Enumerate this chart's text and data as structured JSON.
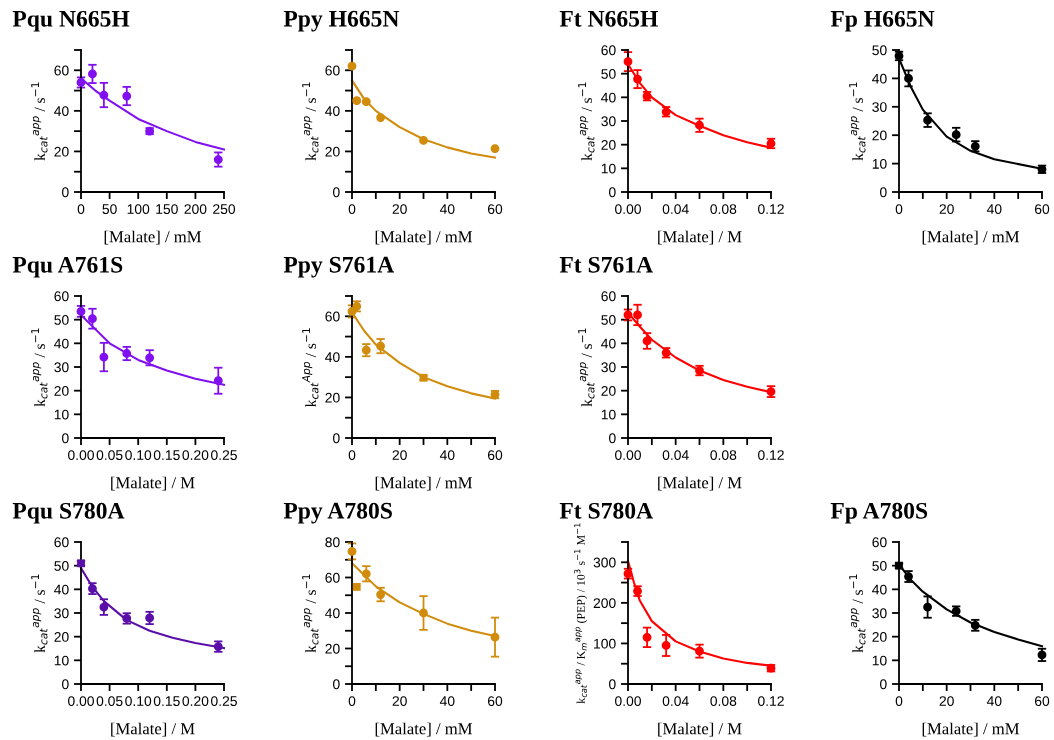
{
  "chart_data": [
    {
      "type": "scatter",
      "title": "Pqu N665H",
      "xlabel": "[Malate] / mM",
      "ylabel": "k$_{cat}$$^{app}$ / s$^{−1}$",
      "marker": "circle",
      "xlim": [
        0,
        250
      ],
      "xticks": [
        0,
        50,
        100,
        150,
        200,
        250
      ],
      "ylim": [
        0,
        70
      ],
      "yticks": [
        0,
        {
          "value": 10,
          "label": null
        },
        20,
        {
          "value": 30,
          "label": null
        },
        40,
        {
          "value": 50,
          "label": null
        },
        60,
        {
          "value": 70,
          "label": null
        }
      ],
      "series": [
        {
          "color": "#8010f0",
          "x": [
            0,
            20,
            40,
            80,
            120,
            240
          ],
          "values": [
            54,
            58.2,
            47.8,
            47.3,
            30,
            16
          ],
          "errors": [
            2.5,
            4.5,
            6,
            4.5,
            1.5,
            3.5
          ]
        },
        {
          "type": "line",
          "marker": "none",
          "color": "#8010f0",
          "x": [
            0,
            25,
            50,
            100,
            150,
            200,
            250
          ],
          "values": [
            56,
            50,
            45,
            36,
            30,
            24.7,
            21
          ]
        }
      ]
    },
    {
      "type": "scatter",
      "title": "Ppy H665N",
      "xlabel": "[Malate] / mM",
      "ylabel": "k$_{cat}$$^{app}$ / s$^{−1}$",
      "marker": "circle",
      "xlim": [
        0,
        60
      ],
      "xticks": [
        0,
        {
          "value": 10,
          "label": null
        },
        20,
        {
          "value": 30,
          "label": null
        },
        40,
        {
          "value": 50,
          "label": null
        },
        60
      ],
      "ylim": [
        0,
        70
      ],
      "yticks": [
        0,
        {
          "value": 10,
          "label": null
        },
        20,
        {
          "value": 30,
          "label": null
        },
        40,
        {
          "value": 50,
          "label": null
        },
        60,
        {
          "value": 70,
          "label": null
        }
      ],
      "series": [
        {
          "color": "#d18c0c",
          "x": [
            0,
            2,
            6,
            12,
            30,
            60
          ],
          "values": [
            62.1,
            45,
            44.5,
            36.7,
            25.5,
            21.4
          ]
        },
        {
          "type": "line",
          "marker": "none",
          "color": "#d18c0c",
          "x": [
            0,
            5,
            10,
            20,
            30,
            40,
            50,
            60
          ],
          "values": [
            55,
            46,
            40,
            32,
            26,
            22,
            19,
            17
          ]
        }
      ]
    },
    {
      "type": "scatter",
      "title": "Ft N665H",
      "xlabel": "[Malate] / M",
      "ylabel": "k$_{cat}$$^{app}$ / s$^{−1}$",
      "marker": "circle",
      "xlim": [
        0,
        0.12
      ],
      "xticks": [
        {
          "value": 0,
          "label": "0.00"
        },
        {
          "value": 0.02,
          "label": null
        },
        {
          "value": 0.04,
          "label": "0.04"
        },
        {
          "value": 0.06,
          "label": null
        },
        {
          "value": 0.08,
          "label": "0.08"
        },
        {
          "value": 0.1,
          "label": null
        },
        {
          "value": 0.12,
          "label": "0.12"
        }
      ],
      "ylim": [
        0,
        60
      ],
      "yticks": [
        0,
        10,
        20,
        30,
        40,
        50,
        60
      ],
      "series": [
        {
          "color": "#ff0000",
          "x": [
            0,
            0.008,
            0.016,
            0.032,
            0.06,
            0.12
          ],
          "values": [
            55.1,
            47.7,
            40.5,
            33.9,
            28.2,
            20.5
          ],
          "errors": [
            4,
            3.8,
            1.8,
            2,
            2.8,
            2
          ]
        },
        {
          "type": "line",
          "marker": "none",
          "color": "#ff0000",
          "x": [
            0,
            0.01,
            0.02,
            0.04,
            0.06,
            0.08,
            0.1,
            0.12
          ],
          "values": [
            54,
            46,
            40,
            32.5,
            28,
            24,
            21,
            18.7
          ]
        }
      ]
    },
    {
      "type": "scatter",
      "title": "Fp H665N",
      "xlabel": "[Malate] / mM",
      "ylabel": "k$_{cat}$$^{app}$ / s$^{−1}$",
      "marker": "circle",
      "xlim": [
        0,
        60
      ],
      "xticks": [
        0,
        {
          "value": 10,
          "label": null
        },
        20,
        {
          "value": 30,
          "label": null
        },
        40,
        {
          "value": 50,
          "label": null
        },
        60
      ],
      "ylim": [
        0,
        50
      ],
      "yticks": [
        0,
        10,
        20,
        30,
        40,
        50
      ],
      "series": [
        {
          "color": "#000000",
          "x": [
            0,
            4,
            12,
            24,
            32,
            60
          ],
          "values": [
            47.9,
            40,
            25.3,
            20.2,
            16.1,
            8
          ],
          "errors": [
            1.5,
            2.8,
            2.4,
            2.4,
            1.8,
            1.3
          ]
        },
        {
          "type": "line",
          "marker": "none",
          "color": "#000000",
          "x": [
            0,
            2,
            5,
            10,
            20,
            30,
            40,
            60
          ],
          "values": [
            47,
            43,
            37,
            29,
            19.5,
            14.5,
            11.5,
            8.2
          ]
        }
      ]
    },
    {
      "type": "scatter",
      "title": "Pqu A761S",
      "xlabel": "[Malate] / M",
      "ylabel": "k$_{cat}$$^{app}$ / s$^{−1}$",
      "marker": "circle",
      "xlim": [
        0,
        0.25
      ],
      "xticks": [
        {
          "value": 0,
          "label": "0.00"
        },
        {
          "value": 0.05,
          "label": "0.05"
        },
        {
          "value": 0.1,
          "label": "0.10"
        },
        {
          "value": 0.15,
          "label": "0.15"
        },
        {
          "value": 0.2,
          "label": "0.20"
        },
        {
          "value": 0.25,
          "label": "0.25"
        }
      ],
      "ylim": [
        0,
        60
      ],
      "yticks": [
        0,
        10,
        20,
        30,
        40,
        50,
        60
      ],
      "series": [
        {
          "color": "#8010f0",
          "x": [
            0,
            0.02,
            0.04,
            0.08,
            0.12,
            0.24
          ],
          "values": [
            53.5,
            50.4,
            34.2,
            35.7,
            33.9,
            24.2
          ],
          "errors": [
            2.3,
            4.2,
            6,
            2.8,
            3.2,
            5.5
          ]
        },
        {
          "type": "line",
          "marker": "none",
          "color": "#8010f0",
          "x": [
            0,
            0.025,
            0.05,
            0.1,
            0.15,
            0.2,
            0.25
          ],
          "values": [
            52,
            46,
            40,
            33,
            28.5,
            25,
            22.5
          ]
        }
      ]
    },
    {
      "type": "scatter",
      "title": "Ppy S761A",
      "xlabel": "[Malate] / mM",
      "ylabel": "k$_{cat}$$^{App}$ / s$^{−1}$",
      "marker": "circle",
      "xlim": [
        0,
        60
      ],
      "xticks": [
        0,
        {
          "value": 10,
          "label": null
        },
        20,
        {
          "value": 30,
          "label": null
        },
        40,
        {
          "value": 50,
          "label": null
        },
        60
      ],
      "ylim": [
        0,
        70
      ],
      "yticks": [
        0,
        {
          "value": 10,
          "label": null
        },
        20,
        {
          "value": 30,
          "label": null
        },
        40,
        {
          "value": 50,
          "label": null
        },
        60,
        {
          "value": 70,
          "label": null
        }
      ],
      "series": [
        {
          "color": "#d18c0c",
          "x": [
            0,
            2,
            6,
            12,
            60
          ],
          "values": [
            62.4,
            64.9,
            43.3,
            45.3,
            21.4
          ],
          "errors": [
            3,
            2.5,
            3,
            3.5,
            1.8
          ]
        },
        {
          "color": "#d18c0c",
          "marker": "square",
          "x": [
            30
          ],
          "values": [
            29.7
          ],
          "errors": [
            1
          ]
        },
        {
          "type": "line",
          "marker": "none",
          "color": "#d18c0c",
          "x": [
            0,
            5,
            10,
            20,
            30,
            40,
            50,
            60
          ],
          "values": [
            62,
            53,
            46,
            37,
            30,
            25.5,
            22,
            19.5
          ]
        }
      ]
    },
    {
      "type": "scatter",
      "title": "Ft S761A",
      "xlabel": "[Malate] / M",
      "ylabel": "k$_{cat}$$^{app}$ / s$^{−1}$",
      "marker": "circle",
      "xlim": [
        0,
        0.12
      ],
      "xticks": [
        {
          "value": 0,
          "label": "0.00"
        },
        {
          "value": 0.02,
          "label": null
        },
        {
          "value": 0.04,
          "label": "0.04"
        },
        {
          "value": 0.06,
          "label": null
        },
        {
          "value": 0.08,
          "label": "0.08"
        },
        {
          "value": 0.1,
          "label": null
        },
        {
          "value": 0.12,
          "label": "0.12"
        }
      ],
      "ylim": [
        0,
        60
      ],
      "yticks": [
        0,
        10,
        20,
        30,
        40,
        50,
        60
      ],
      "series": [
        {
          "color": "#ff0000",
          "x": [
            0,
            0.008,
            0.016,
            0.032,
            0.06,
            0.12
          ],
          "values": [
            52,
            52,
            41,
            36,
            28.5,
            19.6
          ],
          "errors": [
            2.3,
            4.3,
            3.3,
            2,
            2,
            2.3
          ]
        },
        {
          "type": "line",
          "marker": "none",
          "color": "#ff0000",
          "x": [
            0,
            0.01,
            0.02,
            0.04,
            0.06,
            0.08,
            0.1,
            0.12
          ],
          "values": [
            53,
            47,
            41.5,
            34,
            28.5,
            24.5,
            21.7,
            19.3
          ]
        }
      ]
    },
    {
      "type": "scatter",
      "title": "Pqu S780A",
      "xlabel": "[Malate] / M",
      "ylabel": "k$_{cat}$$^{app}$ / s$^{−1}$",
      "marker": "circle",
      "xlim": [
        0,
        0.25
      ],
      "xticks": [
        {
          "value": 0,
          "label": "0.00"
        },
        {
          "value": 0.05,
          "label": "0.05"
        },
        {
          "value": 0.1,
          "label": "0.10"
        },
        {
          "value": 0.15,
          "label": "0.15"
        },
        {
          "value": 0.2,
          "label": "0.20"
        },
        {
          "value": 0.25,
          "label": "0.25"
        }
      ],
      "ylim": [
        0,
        60
      ],
      "yticks": [
        0,
        10,
        20,
        30,
        40,
        50,
        60
      ],
      "series": [
        {
          "color": "#5a0fa8",
          "marker": "square",
          "x": [
            0
          ],
          "values": [
            51
          ],
          "errors": [
            1
          ]
        },
        {
          "color": "#5a0fa8",
          "x": [
            0.02,
            0.04,
            0.08,
            0.12,
            0.24
          ],
          "values": [
            40.3,
            32.5,
            27.7,
            27.9,
            15.8
          ],
          "errors": [
            2.3,
            3.3,
            2.2,
            2.6,
            2.2
          ]
        },
        {
          "type": "line",
          "marker": "none",
          "color": "#5a0fa8",
          "x": [
            0,
            0.02,
            0.04,
            0.08,
            0.12,
            0.16,
            0.2,
            0.25
          ],
          "values": [
            49,
            41,
            35,
            27,
            22.5,
            19.5,
            17.3,
            15.2
          ]
        }
      ]
    },
    {
      "type": "scatter",
      "title": "Ppy A780S",
      "xlabel": "[Malate] / mM",
      "ylabel": "k$_{cat}$$^{app}$ / s$^{−1}$",
      "marker": "circle",
      "xlim": [
        0,
        60
      ],
      "xticks": [
        0,
        {
          "value": 10,
          "label": null
        },
        20,
        {
          "value": 30,
          "label": null
        },
        40,
        {
          "value": 50,
          "label": null
        },
        60
      ],
      "ylim": [
        0,
        80
      ],
      "yticks": [
        0,
        {
          "value": 10,
          "label": null
        },
        20,
        {
          "value": 30,
          "label": null
        },
        40,
        {
          "value": 50,
          "label": null
        },
        60,
        {
          "value": 70,
          "label": null
        },
        80
      ],
      "series": [
        {
          "color": "#d18c0c",
          "x": [
            0,
            6,
            12,
            30,
            60
          ],
          "values": [
            74.7,
            62.1,
            50.4,
            40,
            26.4
          ],
          "errors": [
            4.5,
            4.3,
            3.8,
            9.5,
            11
          ]
        },
        {
          "color": "#d18c0c",
          "marker": "square",
          "x": [
            2
          ],
          "values": [
            54.7
          ]
        },
        {
          "type": "line",
          "marker": "none",
          "color": "#d18c0c",
          "x": [
            0,
            10,
            20,
            30,
            40,
            50,
            60
          ],
          "values": [
            68,
            55,
            46,
            39.5,
            34,
            30,
            27
          ]
        }
      ]
    },
    {
      "type": "scatter",
      "title": "Ft S780A",
      "xlabel": "[Malate] / M",
      "ylabel": "k$_{cat}$$^{app}$ / K$_{m}$$^{app}$ (PEP) / 10$^{3}$ s$^{−1}$ M$^{−1}$",
      "marker": "circle",
      "xlim": [
        0,
        0.12
      ],
      "xticks": [
        {
          "value": 0,
          "label": "0.00"
        },
        {
          "value": 0.02,
          "label": null
        },
        {
          "value": 0.04,
          "label": "0.04"
        },
        {
          "value": 0.06,
          "label": null
        },
        {
          "value": 0.08,
          "label": "0.08"
        },
        {
          "value": 0.1,
          "label": null
        },
        {
          "value": 0.12,
          "label": "0.12"
        }
      ],
      "ylim": [
        0,
        350
      ],
      "yticks": [
        0,
        {
          "value": 50,
          "label": null
        },
        100,
        {
          "value": 150,
          "label": null
        },
        200,
        {
          "value": 250,
          "label": null
        },
        300,
        {
          "value": 350,
          "label": null
        }
      ],
      "series": [
        {
          "color": "#ff0000",
          "x": [
            0,
            0.008,
            0.016,
            0.032,
            0.06,
            0.12
          ],
          "values": [
            272,
            229,
            115,
            95,
            81,
            39
          ],
          "errors": [
            12,
            12,
            24,
            26,
            16,
            8
          ]
        },
        {
          "type": "line",
          "marker": "none",
          "color": "#ff0000",
          "x": [
            0,
            0.005,
            0.01,
            0.02,
            0.04,
            0.06,
            0.08,
            0.1,
            0.12
          ],
          "values": [
            303,
            250,
            205,
            155,
            105,
            80,
            63,
            52,
            45
          ]
        }
      ]
    },
    {
      "type": "scatter",
      "title": "Fp A780S",
      "xlabel": "[Malate] / mM",
      "ylabel": "k$_{cat}$$^{app}$ / s$^{−1}$",
      "marker": "circle",
      "xlim": [
        0,
        60
      ],
      "xticks": [
        0,
        {
          "value": 10,
          "label": null
        },
        20,
        {
          "value": 30,
          "label": null
        },
        40,
        {
          "value": 50,
          "label": null
        },
        60
      ],
      "ylim": [
        0,
        60
      ],
      "yticks": [
        0,
        10,
        20,
        30,
        40,
        50,
        60
      ],
      "series": [
        {
          "color": "#000000",
          "marker": "square",
          "x": [
            0
          ],
          "values": [
            50
          ],
          "errors": [
            1
          ]
        },
        {
          "color": "#000000",
          "x": [
            4,
            12,
            24,
            32,
            60
          ],
          "values": [
            45.4,
            32.5,
            30.8,
            24.8,
            12.3
          ],
          "errors": [
            2.3,
            4.5,
            2,
            2.3,
            2.6
          ]
        },
        {
          "type": "line",
          "marker": "none",
          "color": "#000000",
          "x": [
            0,
            5,
            10,
            20,
            30,
            40,
            50,
            60
          ],
          "values": [
            50.5,
            44,
            39,
            31.5,
            26,
            22,
            18.8,
            16
          ]
        }
      ]
    }
  ]
}
